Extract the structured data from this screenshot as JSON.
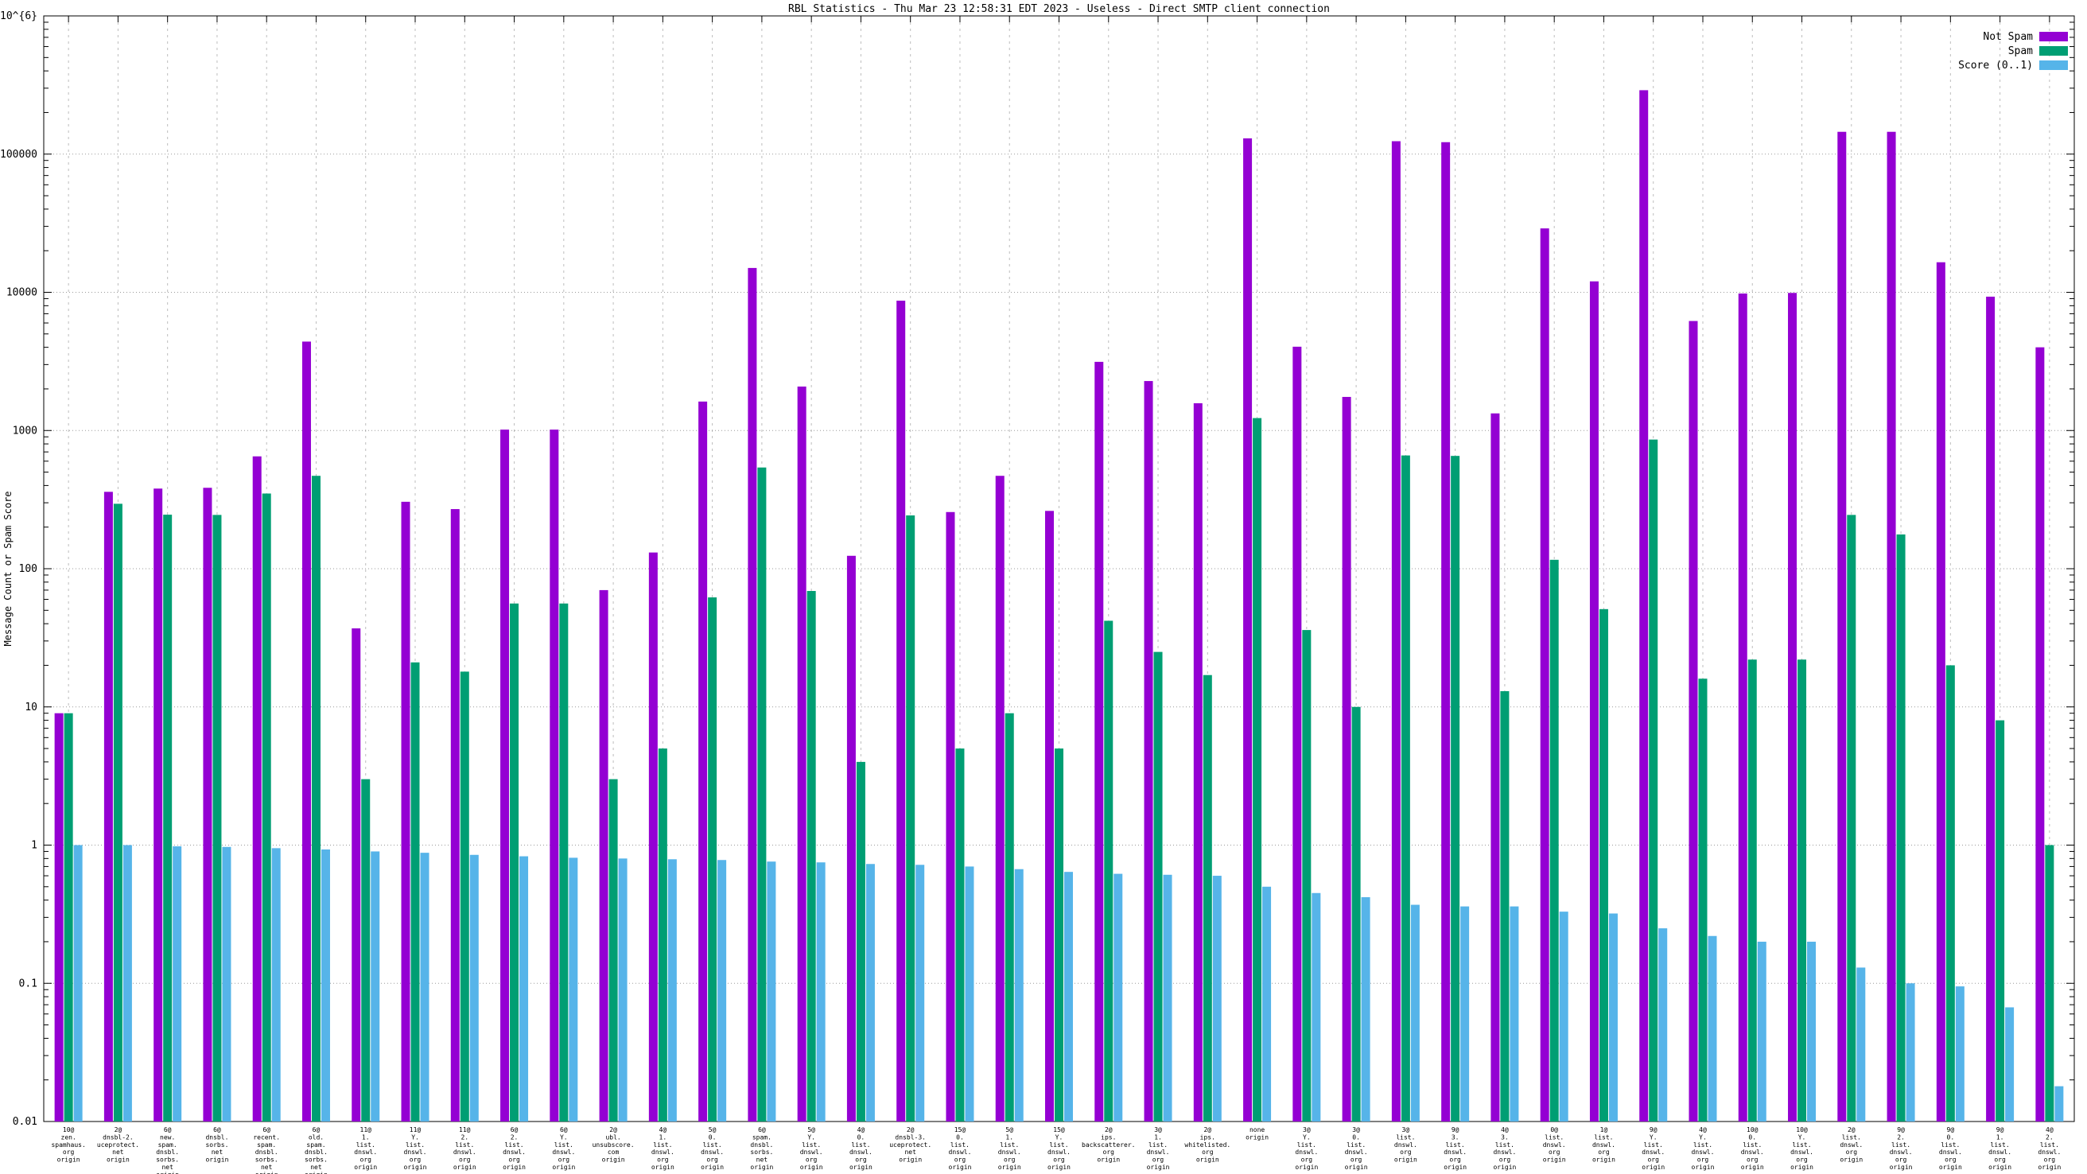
{
  "title": "RBL Statistics - Thu Mar 23 12:58:31 EDT 2023 - Useless - Direct SMTP client connection",
  "y_axis": {
    "label": "Message Count or Spam Score",
    "ticks": [
      {
        "v": 1000000,
        "label": "1x10^{6}"
      },
      {
        "v": 100000,
        "label": "100000"
      },
      {
        "v": 10000,
        "label": "10000"
      },
      {
        "v": 1000,
        "label": "1000"
      },
      {
        "v": 100,
        "label": "100"
      },
      {
        "v": 10,
        "label": "10"
      },
      {
        "v": 1,
        "label": "1"
      },
      {
        "v": 0.1,
        "label": "0.1"
      },
      {
        "v": 0.01,
        "label": "0.01"
      }
    ]
  },
  "legend": [
    {
      "label": "Not Spam",
      "color": "#9400d3"
    },
    {
      "label": "Spam",
      "color": "#009e73"
    },
    {
      "label": "Score (0..1)",
      "color": "#56b4e9"
    }
  ],
  "colors": {
    "not_spam": "#9400d3",
    "spam": "#009e73",
    "score": "#56b4e9",
    "grid_h": "#9a9a9a",
    "grid_v": "#bdbdbd",
    "axis": "#000000"
  },
  "chart_data": {
    "type": "bar",
    "title": "RBL Statistics - Thu Mar 23 12:58:31 EDT 2023 - Useless - Direct SMTP client connection",
    "xlabel": "",
    "ylabel": "Message Count or Spam Score",
    "y_scale": "log10",
    "ylim": [
      0.01,
      1000000
    ],
    "grid": true,
    "legend_position": "top-right",
    "categories": [
      [
        "10@",
        "zen.",
        "spamhaus.",
        "org",
        "origin"
      ],
      [
        "2@",
        "dnsbl-2.",
        "uceprotect.",
        "net",
        "origin"
      ],
      [
        "6@",
        "new.",
        "spam.",
        "dnsbl.",
        "sorbs.",
        "net",
        "origin"
      ],
      [
        "6@",
        "dnsbl.",
        "sorbs.",
        "net",
        "origin"
      ],
      [
        "6@",
        "recent.",
        "spam.",
        "dnsbl.",
        "sorbs.",
        "net",
        "origin"
      ],
      [
        "6@",
        "old.",
        "spam.",
        "dnsbl.",
        "sorbs.",
        "net",
        "origin"
      ],
      [
        "11@",
        "1.",
        "list.",
        "dnswl.",
        "org",
        "origin"
      ],
      [
        "11@",
        "Y.",
        "list.",
        "dnswl.",
        "org",
        "origin"
      ],
      [
        "11@",
        "2.",
        "list.",
        "dnswl.",
        "org",
        "origin"
      ],
      [
        "6@",
        "2.",
        "list.",
        "dnswl.",
        "org",
        "origin"
      ],
      [
        "6@",
        "Y.",
        "list.",
        "dnswl.",
        "org",
        "origin"
      ],
      [
        "2@",
        "ubl.",
        "unsubscore.",
        "com",
        "origin"
      ],
      [
        "4@",
        "1.",
        "list.",
        "dnswl.",
        "org",
        "origin"
      ],
      [
        "5@",
        "0.",
        "list.",
        "dnswl.",
        "org",
        "origin"
      ],
      [
        "6@",
        "spam.",
        "dnsbl.",
        "sorbs.",
        "net",
        "origin"
      ],
      [
        "5@",
        "Y.",
        "list.",
        "dnswl.",
        "org",
        "origin"
      ],
      [
        "4@",
        "0.",
        "list.",
        "dnswl.",
        "org",
        "origin"
      ],
      [
        "2@",
        "dnsbl-3.",
        "uceprotect.",
        "net",
        "origin"
      ],
      [
        "15@",
        "0.",
        "list.",
        "dnswl.",
        "org",
        "origin"
      ],
      [
        "5@",
        "1.",
        "list.",
        "dnswl.",
        "org",
        "origin"
      ],
      [
        "15@",
        "Y.",
        "list.",
        "dnswl.",
        "org",
        "origin"
      ],
      [
        "2@",
        "ips.",
        "backscatterer.",
        "org",
        "origin"
      ],
      [
        "3@",
        "1.",
        "list.",
        "dnswl.",
        "org",
        "origin"
      ],
      [
        "2@",
        "ips.",
        "whitelisted.",
        "org",
        "origin"
      ],
      [
        "none",
        "origin"
      ],
      [
        "3@",
        "Y.",
        "list.",
        "dnswl.",
        "org",
        "origin"
      ],
      [
        "3@",
        "0.",
        "list.",
        "dnswl.",
        "org",
        "origin"
      ],
      [
        "3@",
        "list.",
        "dnswl.",
        "org",
        "origin"
      ],
      [
        "9@",
        "3.",
        "list.",
        "dnswl.",
        "org",
        "origin"
      ],
      [
        "4@",
        "3.",
        "list.",
        "dnswl.",
        "org",
        "origin"
      ],
      [
        "0@",
        "list.",
        "dnswl.",
        "org",
        "origin"
      ],
      [
        "1@",
        "list.",
        "dnswl.",
        "org",
        "origin"
      ],
      [
        "9@",
        "Y.",
        "list.",
        "dnswl.",
        "org",
        "origin"
      ],
      [
        "4@",
        "Y.",
        "list.",
        "dnswl.",
        "org",
        "origin"
      ],
      [
        "10@",
        "0.",
        "list.",
        "dnswl.",
        "org",
        "origin"
      ],
      [
        "10@",
        "Y.",
        "list.",
        "dnswl.",
        "org",
        "origin"
      ],
      [
        "2@",
        "list.",
        "dnswl.",
        "org",
        "origin"
      ],
      [
        "9@",
        "2.",
        "list.",
        "dnswl.",
        "org",
        "origin"
      ],
      [
        "9@",
        "0.",
        "list.",
        "dnswl.",
        "org",
        "origin"
      ],
      [
        "9@",
        "1.",
        "list.",
        "dnswl.",
        "org",
        "origin"
      ],
      [
        "4@",
        "2.",
        "list.",
        "dnswl.",
        "org",
        "origin"
      ]
    ],
    "series": [
      {
        "name": "Not Spam",
        "color": "#9400d3",
        "values": [
          9,
          360,
          380,
          385,
          650,
          4400,
          37,
          305,
          270,
          1015,
          1015,
          70,
          131,
          1620,
          15000,
          2080,
          124,
          8700,
          257,
          470,
          262,
          3140,
          2280,
          1575,
          130000,
          4040,
          1750,
          124000,
          122000,
          1330,
          29000,
          12000,
          290000,
          6200,
          9800,
          9900,
          145000,
          145000,
          16500,
          9300,
          4000
        ]
      },
      {
        "name": "Spam",
        "color": "#009e73",
        "values": [
          9,
          295,
          246,
          245,
          350,
          470,
          3,
          21,
          18,
          56,
          56,
          3,
          5,
          62,
          540,
          69,
          4,
          243,
          5,
          9,
          5,
          42,
          25,
          17,
          1230,
          36,
          10,
          660,
          655,
          13,
          116,
          51,
          860,
          16,
          22,
          22,
          245,
          177,
          20,
          8,
          1
        ]
      },
      {
        "name": "Score (0..1)",
        "color": "#56b4e9",
        "values": [
          1.0,
          1.0,
          0.98,
          0.97,
          0.95,
          0.93,
          0.9,
          0.88,
          0.85,
          0.83,
          0.81,
          0.8,
          0.79,
          0.78,
          0.76,
          0.75,
          0.73,
          0.72,
          0.7,
          0.67,
          0.64,
          0.62,
          0.61,
          0.6,
          0.5,
          0.45,
          0.42,
          0.37,
          0.36,
          0.36,
          0.33,
          0.32,
          0.25,
          0.22,
          0.2,
          0.2,
          0.13,
          0.1,
          0.095,
          0.067,
          0.018
        ]
      }
    ]
  }
}
